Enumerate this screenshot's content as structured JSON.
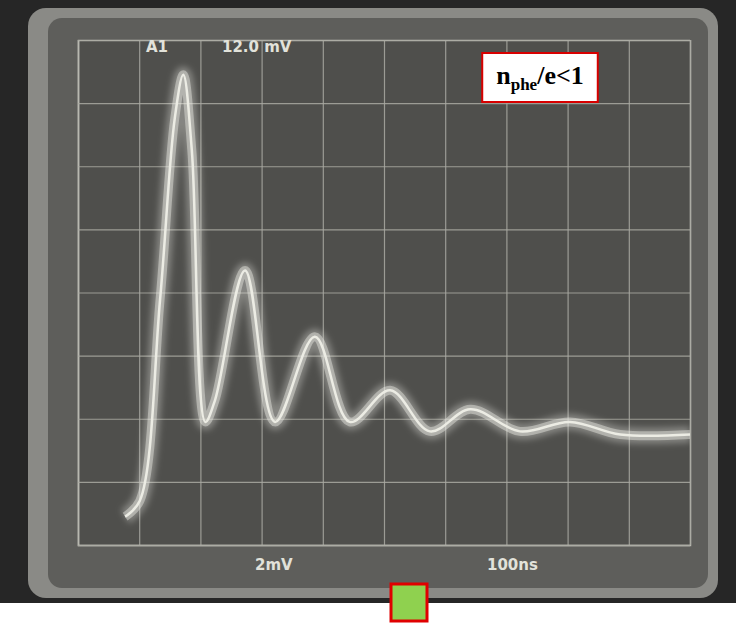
{
  "chart_data": {
    "type": "line",
    "x": [
      77,
      101,
      134,
      158,
      172,
      186,
      208,
      224,
      273,
      322,
      387,
      444,
      510,
      575,
      641,
      722,
      804,
      886,
      1000
    ],
    "series": [
      {
        "color": "#ecece4",
        "values": [
          -7.1,
          -6.6,
          -0.25,
          5.5,
          6.9,
          4.5,
          -4.1,
          -3.4,
          0.7,
          -4.1,
          -1.4,
          -4.1,
          -3.1,
          -4.4,
          -3.7,
          -4.4,
          -4.1,
          -4.5,
          -4.5
        ]
      }
    ],
    "xlim": [
      0,
      1000
    ],
    "ylim": [
      -8,
      8
    ],
    "xticks": [
      0,
      100,
      200,
      300,
      400,
      500,
      600,
      700,
      800,
      900,
      1000
    ],
    "yticks": [
      -8,
      -6,
      -4,
      -2,
      0,
      2,
      4,
      6,
      8
    ],
    "grid": true,
    "tick_labels": false,
    "annotations": [
      {
        "text": "A1"
      },
      {
        "text": "12.0 mV"
      },
      {
        "text": "2mV"
      },
      {
        "text": "100ns"
      },
      {
        "text": "n",
        "subscript": "phe",
        "suffix": "/e<1"
      }
    ]
  }
}
